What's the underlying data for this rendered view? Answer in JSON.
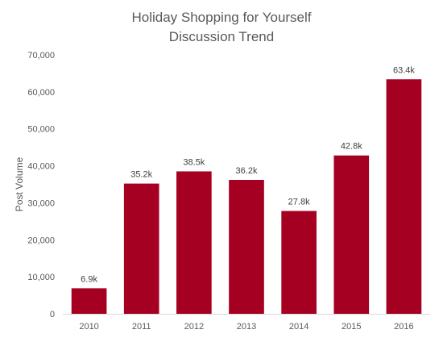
{
  "chart_data": {
    "type": "bar",
    "title_lines": [
      "Holiday Shopping for Yourself",
      "Discussion Trend"
    ],
    "xlabel": "",
    "ylabel": "Post Volume",
    "categories": [
      "2010",
      "2011",
      "2012",
      "2013",
      "2014",
      "2015",
      "2016"
    ],
    "values": [
      6900,
      35200,
      38500,
      36200,
      27800,
      42800,
      63400
    ],
    "data_labels": [
      "6.9k",
      "35.2k",
      "38.5k",
      "36.2k",
      "27.8k",
      "42.8k",
      "63.4k"
    ],
    "ylim": [
      0,
      70000
    ],
    "yticks": [
      0,
      10000,
      20000,
      30000,
      40000,
      50000,
      60000,
      70000
    ],
    "ytick_labels": [
      "0",
      "10,000",
      "20,000",
      "30,000",
      "40,000",
      "50,000",
      "60,000",
      "70,000"
    ],
    "grid": false,
    "bar_color": "#A50021"
  }
}
